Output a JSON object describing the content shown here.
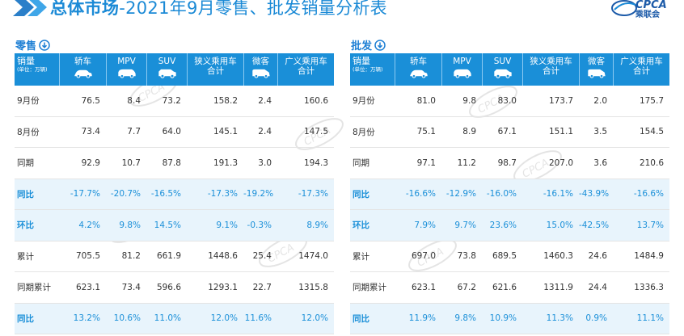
{
  "header": {
    "title_bold": "总体市场",
    "title_rest": "-2021年9月零售、批发销量分析表",
    "logo_text": "CPCA",
    "logo_cn": "乘联会"
  },
  "sections": [
    {
      "label": "零售",
      "columns": [
        {
          "label": "销量",
          "sub": "(单位：万辆)",
          "icon": "label"
        },
        {
          "label": "轿车",
          "icon": "sedan-icon"
        },
        {
          "label": "MPV",
          "icon": "mpv-icon"
        },
        {
          "label": "SUV",
          "icon": "suv-icon"
        },
        {
          "label": "狭义乘用车",
          "label2": "合计"
        },
        {
          "label": "微客",
          "icon": "minivan-icon"
        },
        {
          "label": "广义乘用车",
          "label2": "合计"
        }
      ],
      "rows": [
        {
          "label": "9月份",
          "values": [
            "76.5",
            "8.4",
            "73.2",
            "158.2",
            "2.4",
            "160.6"
          ],
          "highlight": false
        },
        {
          "label": "8月份",
          "values": [
            "73.4",
            "7.7",
            "64.0",
            "145.1",
            "2.4",
            "147.5"
          ],
          "highlight": false
        },
        {
          "label": "同期",
          "values": [
            "92.9",
            "10.7",
            "87.8",
            "191.3",
            "3.0",
            "194.3"
          ],
          "highlight": false
        },
        {
          "label": "同比",
          "values": [
            "-17.7%",
            "-20.7%",
            "-16.5%",
            "-17.3%",
            "-19.2%",
            "-17.3%"
          ],
          "highlight": true
        },
        {
          "label": "环比",
          "values": [
            "4.2%",
            "9.8%",
            "14.5%",
            "9.1%",
            "-0.3%",
            "8.9%"
          ],
          "highlight": true
        },
        {
          "label": "累计",
          "values": [
            "705.5",
            "81.2",
            "661.9",
            "1448.6",
            "25.4",
            "1474.0"
          ],
          "highlight": false
        },
        {
          "label": "同期累计",
          "values": [
            "623.1",
            "73.4",
            "596.6",
            "1293.1",
            "22.7",
            "1315.8"
          ],
          "highlight": false
        },
        {
          "label": "同比",
          "values": [
            "13.2%",
            "10.6%",
            "11.0%",
            "12.0%",
            "11.6%",
            "12.0%"
          ],
          "highlight": true
        }
      ]
    },
    {
      "label": "批发",
      "columns": [
        {
          "label": "销量",
          "sub": "(单位：万辆)",
          "icon": "label"
        },
        {
          "label": "轿车",
          "icon": "sedan-icon"
        },
        {
          "label": "MPV",
          "icon": "mpv-icon"
        },
        {
          "label": "SUV",
          "icon": "suv-icon"
        },
        {
          "label": "狭义乘用车",
          "label2": "合计"
        },
        {
          "label": "微客",
          "icon": "minivan-icon"
        },
        {
          "label": "广义乘用车",
          "label2": "合计"
        }
      ],
      "rows": [
        {
          "label": "9月份",
          "values": [
            "81.0",
            "9.8",
            "83.0",
            "173.7",
            "2.0",
            "175.7"
          ],
          "highlight": false
        },
        {
          "label": "8月份",
          "values": [
            "75.1",
            "8.9",
            "67.1",
            "151.1",
            "3.5",
            "154.5"
          ],
          "highlight": false
        },
        {
          "label": "同期",
          "values": [
            "97.1",
            "11.2",
            "98.7",
            "207.0",
            "3.6",
            "210.6"
          ],
          "highlight": false
        },
        {
          "label": "同比",
          "values": [
            "-16.6%",
            "-12.9%",
            "-16.0%",
            "-16.1%",
            "-43.9%",
            "-16.6%"
          ],
          "highlight": true
        },
        {
          "label": "环比",
          "values": [
            "7.9%",
            "9.7%",
            "23.6%",
            "15.0%",
            "-42.5%",
            "13.7%"
          ],
          "highlight": true
        },
        {
          "label": "累计",
          "values": [
            "697.0",
            "73.8",
            "689.5",
            "1460.3",
            "24.6",
            "1484.9"
          ],
          "highlight": false
        },
        {
          "label": "同期累计",
          "values": [
            "623.1",
            "67.2",
            "621.6",
            "1311.9",
            "24.4",
            "1336.3"
          ],
          "highlight": false
        },
        {
          "label": "同比",
          "values": [
            "11.9%",
            "9.8%",
            "10.9%",
            "11.3%",
            "0.9%",
            "11.1%"
          ],
          "highlight": true
        }
      ]
    }
  ],
  "colors": {
    "header_blue": "#1a8fd8",
    "title_blue": "#1b8ad6",
    "highlight_row_bg": "#e8f4fc",
    "highlight_text": "#1a8fd8"
  }
}
